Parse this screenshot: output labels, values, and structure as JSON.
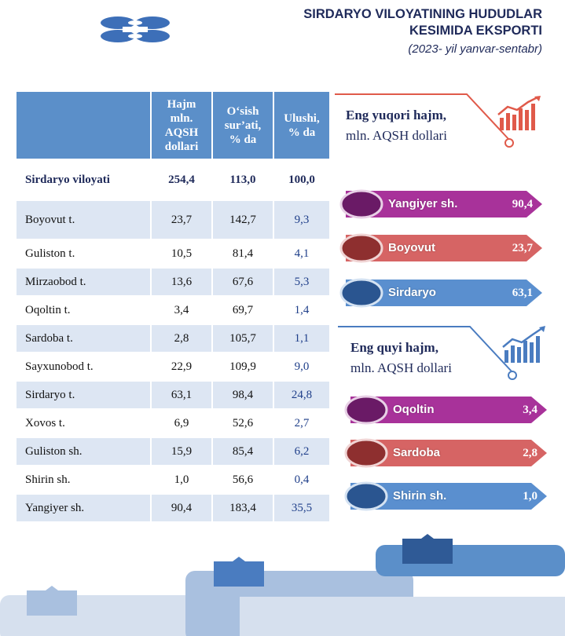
{
  "header": {
    "title_line1": "SIRDARYO VILOYATINING HUDUDLAR",
    "title_line2": "KESIMIDA EKSPORTI",
    "subtitle": "(2023- yil yanvar-sentabr)"
  },
  "table": {
    "columns": [
      "",
      "Hajm mln. AQSH dollari",
      "O‘sish sur’ati, % da",
      "Ulushi, % da"
    ],
    "col_lines": [
      [
        "Hajm",
        "mln.",
        "AQSH",
        "dollari"
      ],
      [
        "O‘sish",
        "sur’ati,",
        "% da"
      ],
      [
        "Ulushi,",
        "% da"
      ]
    ],
    "total": {
      "name": "Sirdaryo viloyati",
      "volume": "254,4",
      "growth": "113,0",
      "share": "100,0"
    },
    "rows": [
      {
        "name": "Boyovut t.",
        "volume": "23,7",
        "growth": "142,7",
        "share": "9,3"
      },
      {
        "name": "Guliston t.",
        "volume": "10,5",
        "growth": "81,4",
        "share": "4,1"
      },
      {
        "name": "Mirzaobod t.",
        "volume": "13,6",
        "growth": "67,6",
        "share": "5,3"
      },
      {
        "name": "Oqoltin t.",
        "volume": "3,4",
        "growth": "69,7",
        "share": "1,4"
      },
      {
        "name": "Sardoba t.",
        "volume": "2,8",
        "growth": "105,7",
        "share": "1,1"
      },
      {
        "name": "Sayxunobod t.",
        "volume": "22,9",
        "growth": "109,9",
        "share": "9,0"
      },
      {
        "name": "Sirdaryo t.",
        "volume": "63,1",
        "growth": "98,4",
        "share": "24,8"
      },
      {
        "name": "Xovos t.",
        "volume": "6,9",
        "growth": "52,6",
        "share": "2,7"
      },
      {
        "name": "Guliston sh.",
        "volume": "15,9",
        "growth": "85,4",
        "share": "6,2"
      },
      {
        "name": "Shirin sh.",
        "volume": "1,0",
        "growth": "56,6",
        "share": "0,4"
      },
      {
        "name": "Yangiyer sh.",
        "volume": "90,4",
        "growth": "183,4",
        "share": "35,5"
      }
    ]
  },
  "top": {
    "title": "Eng yuqori hajm,",
    "unit": "mln. AQSH dollari",
    "items": [
      {
        "label": "Yangiyer sh.",
        "value": "90,4",
        "color": "#a8329a",
        "dark": "#6a1a66"
      },
      {
        "label": "Boyovut",
        "value": "23,7",
        "color": "#d66464",
        "dark": "#8e2f2f"
      },
      {
        "label": "Sirdaryo",
        "value": "63,1",
        "color": "#5a8fcf",
        "dark": "#2a5590"
      }
    ]
  },
  "bottom_list": {
    "title": "Eng quyi hajm,",
    "unit": "mln. AQSH dollari",
    "items": [
      {
        "label": "Oqoltin",
        "value": "3,4",
        "color": "#a8329a",
        "dark": "#6a1a66"
      },
      {
        "label": "Sardoba",
        "value": "2,8",
        "color": "#d66464",
        "dark": "#8e2f2f"
      },
      {
        "label": "Shirin sh.",
        "value": "1,0",
        "color": "#5a8fcf",
        "dark": "#2a5590"
      }
    ]
  },
  "colors": {
    "header_blue": "#5b8fc9",
    "row_shade": "#dde6f3",
    "accent_red": "#e05a4a",
    "accent_blue": "#4a7cc0"
  },
  "icons": {
    "logo": "chain-logo-icon",
    "chart_up": "bar-chart-up-icon"
  }
}
